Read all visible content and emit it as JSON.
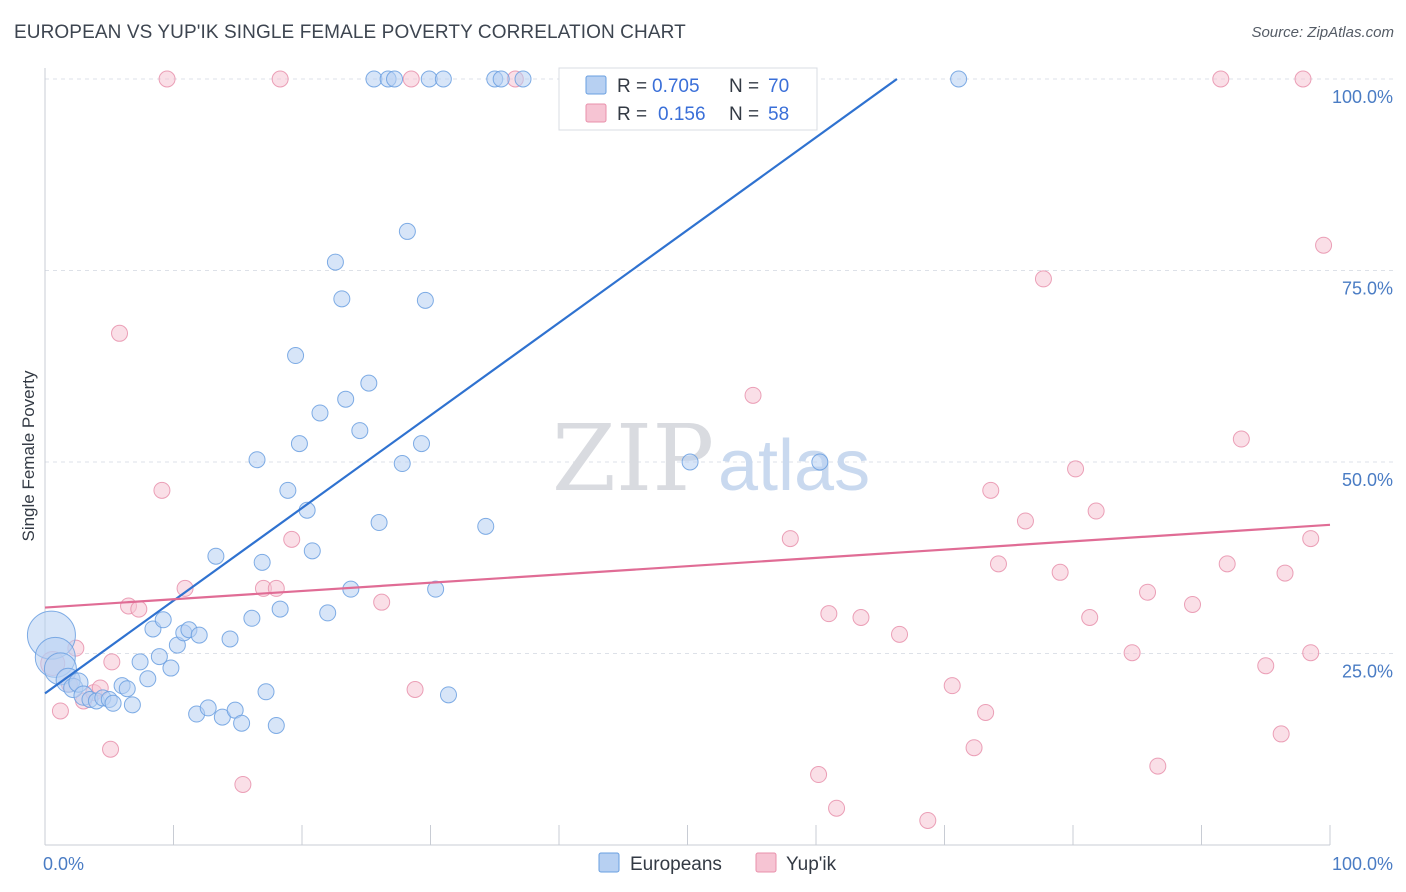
{
  "header": {
    "title": "EUROPEAN VS YUP'IK SINGLE FEMALE POVERTY CORRELATION CHART",
    "source": "Source: ZipAtlas.com"
  },
  "watermark": {
    "zip": "ZIP",
    "atlas": "atlas"
  },
  "colors": {
    "blue": "#6a9fe0",
    "blue_fill": "#b7d0f2",
    "blue_line": "#2f72d0",
    "pink": "#e890ab",
    "pink_fill": "#f6c4d3",
    "pink_line": "#e06c95",
    "grid": "#dde1e8",
    "axis_text": "#4a7cc4"
  },
  "chart_data": {
    "type": "scatter",
    "title": "EUROPEAN VS YUP'IK SINGLE FEMALE POVERTY CORRELATION CHART",
    "xlabel": "",
    "ylabel": "Single Female Poverty",
    "xlim": [
      0,
      100
    ],
    "ylim": [
      0,
      100
    ],
    "x_tick_labels": [
      "0.0%",
      "100.0%"
    ],
    "y_ticks": [
      25,
      50,
      75,
      100
    ],
    "y_tick_labels": [
      "25.0%",
      "50.0%",
      "75.0%",
      "100.0%"
    ],
    "grid": true,
    "legend_position": "top-center",
    "series": [
      {
        "name": "Europeans",
        "legend_r_label": "R = ",
        "legend_r": "0.705",
        "legend_n_label": "N = ",
        "legend_n": "70",
        "trend": {
          "x": [
            0,
            66.3
          ],
          "y": [
            19.8,
            100
          ]
        },
        "points": [
          [
            0.5,
            27.4,
            3
          ],
          [
            0.8,
            24.5,
            2.5
          ],
          [
            1.2,
            23.0,
            2
          ],
          [
            1.8,
            21.5,
            1.5
          ],
          [
            2.2,
            20.5,
            1.2
          ],
          [
            2.6,
            21.2,
            1.2
          ],
          [
            3.0,
            19.5,
            1.2
          ],
          [
            3.5,
            19.0,
            1
          ],
          [
            4.0,
            18.8,
            1
          ],
          [
            4.5,
            19.2,
            1
          ],
          [
            5.0,
            19.0,
            1
          ],
          [
            5.3,
            18.5,
            1
          ],
          [
            6.0,
            20.8,
            1
          ],
          [
            6.4,
            20.4,
            1
          ],
          [
            6.8,
            18.3,
            1
          ],
          [
            7.4,
            23.9,
            1
          ],
          [
            8.0,
            21.7,
            1
          ],
          [
            8.4,
            28.2,
            1
          ],
          [
            8.9,
            24.6,
            1
          ],
          [
            9.2,
            29.4,
            1
          ],
          [
            9.8,
            23.1,
            1
          ],
          [
            10.3,
            26.1,
            1
          ],
          [
            10.8,
            27.7,
            1
          ],
          [
            11.2,
            28.1,
            1
          ],
          [
            12.0,
            27.4,
            1
          ],
          [
            11.8,
            17.1,
            1
          ],
          [
            12.7,
            17.9,
            1
          ],
          [
            13.3,
            37.7,
            1
          ],
          [
            13.8,
            16.7,
            1
          ],
          [
            14.4,
            26.9,
            1
          ],
          [
            14.8,
            17.6,
            1
          ],
          [
            15.3,
            15.9,
            1
          ],
          [
            16.1,
            29.6,
            1
          ],
          [
            16.5,
            50.3,
            1
          ],
          [
            16.9,
            36.9,
            1
          ],
          [
            17.2,
            20.0,
            1
          ],
          [
            18.0,
            15.6,
            1
          ],
          [
            18.3,
            30.8,
            1
          ],
          [
            18.9,
            46.3,
            1
          ],
          [
            19.5,
            63.9,
            1
          ],
          [
            19.8,
            52.4,
            1
          ],
          [
            20.4,
            43.7,
            1
          ],
          [
            20.8,
            38.4,
            1
          ],
          [
            21.4,
            56.4,
            1
          ],
          [
            22.0,
            30.3,
            1
          ],
          [
            22.6,
            76.1,
            1
          ],
          [
            23.1,
            71.3,
            1
          ],
          [
            23.4,
            58.2,
            1
          ],
          [
            23.8,
            33.4,
            1
          ],
          [
            24.5,
            54.1,
            1
          ],
          [
            25.2,
            60.3,
            1
          ],
          [
            25.6,
            100,
            1
          ],
          [
            26.0,
            42.1,
            1
          ],
          [
            26.7,
            100,
            1
          ],
          [
            27.2,
            100,
            1
          ],
          [
            27.8,
            49.8,
            1
          ],
          [
            28.2,
            80.1,
            1
          ],
          [
            29.3,
            52.4,
            1
          ],
          [
            29.6,
            71.1,
            1
          ],
          [
            29.9,
            100,
            1
          ],
          [
            30.4,
            33.4,
            1
          ],
          [
            31.0,
            100,
            1
          ],
          [
            31.4,
            19.6,
            1
          ],
          [
            34.3,
            41.6,
            1
          ],
          [
            35.0,
            100,
            1
          ],
          [
            35.5,
            100,
            1
          ],
          [
            37.2,
            100,
            1
          ],
          [
            50.2,
            50.0,
            1
          ],
          [
            60.3,
            50.0,
            1
          ],
          [
            71.1,
            100,
            1
          ]
        ]
      },
      {
        "name": "Yup'ik",
        "legend_r_label": "R = ",
        "legend_r": "0.156",
        "legend_n_label": "N = ",
        "legend_n": "58",
        "trend": {
          "x": [
            0,
            100
          ],
          "y": [
            31.0,
            41.8
          ]
        },
        "points": [
          [
            0.6,
            23.7,
            1.5
          ],
          [
            1.2,
            17.5,
            1
          ],
          [
            1.9,
            21.0,
            1
          ],
          [
            2.4,
            25.7,
            1
          ],
          [
            3.0,
            18.8,
            1
          ],
          [
            3.8,
            19.9,
            1
          ],
          [
            4.3,
            20.5,
            1
          ],
          [
            5.1,
            12.5,
            1
          ],
          [
            5.2,
            23.9,
            1
          ],
          [
            5.8,
            66.8,
            1
          ],
          [
            6.5,
            31.2,
            1
          ],
          [
            7.3,
            30.8,
            1
          ],
          [
            9.1,
            46.3,
            1
          ],
          [
            9.5,
            100,
            1
          ],
          [
            10.9,
            33.5,
            1
          ],
          [
            15.4,
            7.9,
            1
          ],
          [
            17.0,
            33.5,
            1
          ],
          [
            18.0,
            33.5,
            1
          ],
          [
            18.3,
            100,
            1
          ],
          [
            19.2,
            39.9,
            1
          ],
          [
            26.2,
            31.7,
            1
          ],
          [
            28.5,
            100,
            1
          ],
          [
            28.8,
            20.3,
            1
          ],
          [
            55.1,
            58.7,
            1
          ],
          [
            58.0,
            40.0,
            1
          ],
          [
            60.2,
            9.2,
            1
          ],
          [
            61.0,
            30.2,
            1
          ],
          [
            61.6,
            4.8,
            1
          ],
          [
            63.5,
            29.7,
            1
          ],
          [
            66.5,
            27.5,
            1
          ],
          [
            68.7,
            3.2,
            1
          ],
          [
            70.6,
            20.8,
            1
          ],
          [
            72.3,
            12.7,
            1
          ],
          [
            73.2,
            17.3,
            1
          ],
          [
            73.6,
            46.3,
            1
          ],
          [
            74.2,
            36.7,
            1
          ],
          [
            76.3,
            42.3,
            1
          ],
          [
            77.7,
            73.9,
            1
          ],
          [
            79.0,
            35.6,
            1
          ],
          [
            80.2,
            49.1,
            1
          ],
          [
            81.3,
            29.7,
            1
          ],
          [
            81.8,
            43.6,
            1
          ],
          [
            84.6,
            25.1,
            1
          ],
          [
            85.8,
            33.0,
            1
          ],
          [
            86.6,
            10.3,
            1
          ],
          [
            89.3,
            31.4,
            1
          ],
          [
            91.5,
            100,
            1
          ],
          [
            92.0,
            36.7,
            1
          ],
          [
            93.1,
            53.0,
            1
          ],
          [
            95.0,
            23.4,
            1
          ],
          [
            96.2,
            14.5,
            1
          ],
          [
            96.5,
            35.5,
            1
          ],
          [
            97.9,
            100,
            1
          ],
          [
            98.5,
            25.1,
            1
          ],
          [
            98.5,
            40.0,
            1
          ],
          [
            99.5,
            78.3,
            1
          ],
          [
            36.6,
            100,
            1
          ],
          [
            47.3,
            100,
            1
          ]
        ]
      }
    ]
  }
}
